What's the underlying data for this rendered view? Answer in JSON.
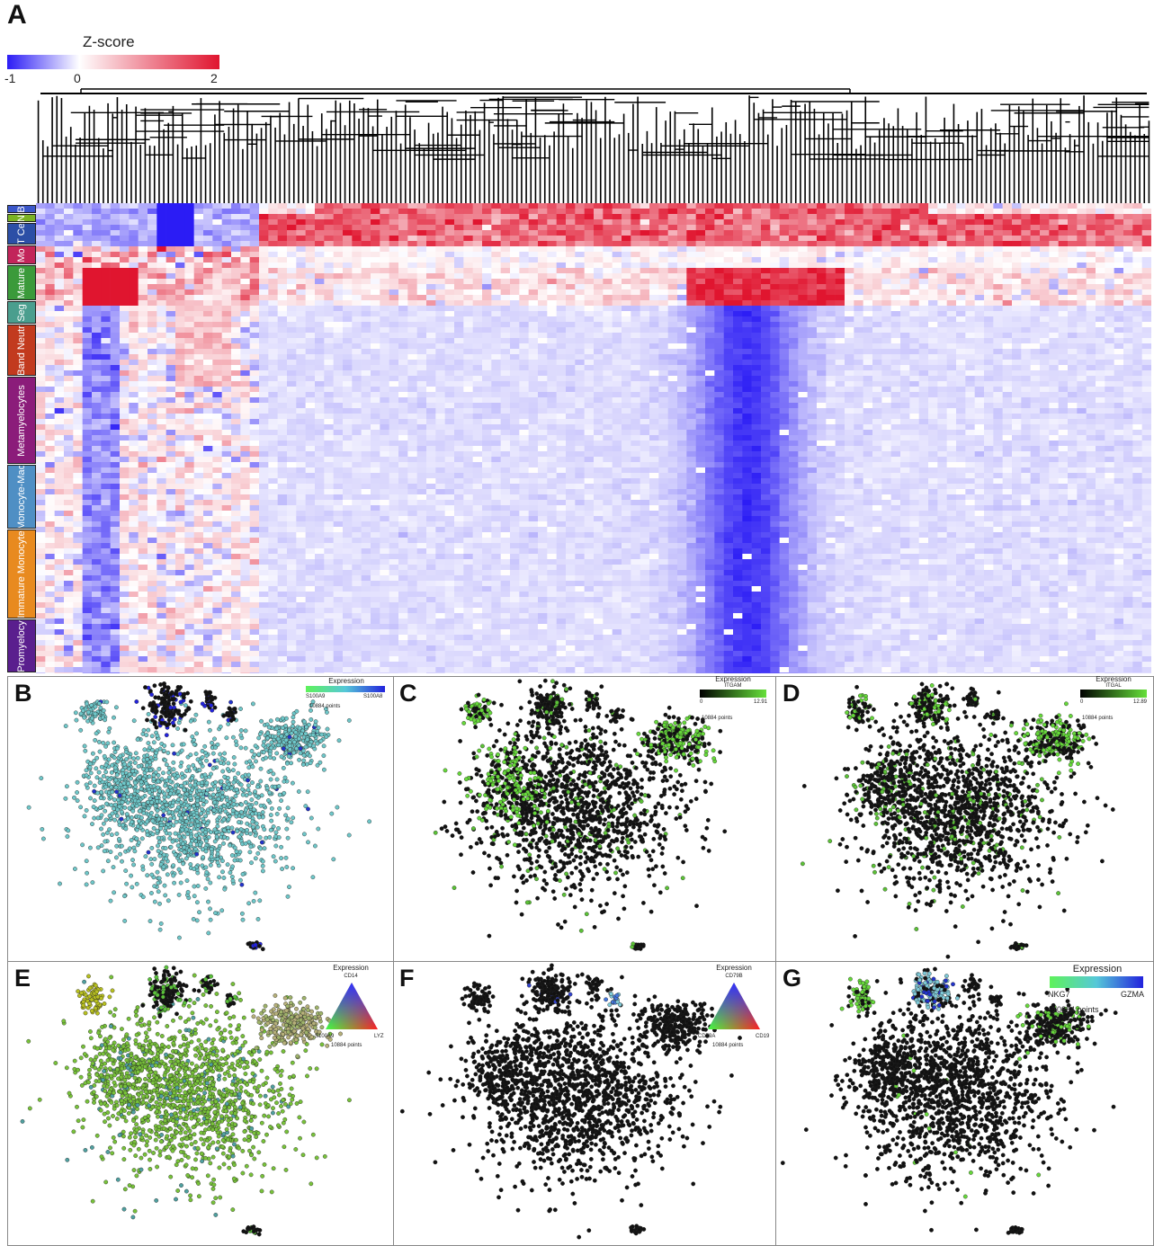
{
  "panels": {
    "a": "A",
    "b": "B",
    "c": "C",
    "d": "D",
    "e": "E",
    "f": "F",
    "g": "G"
  },
  "colorbar": {
    "title": "Z-score",
    "ticks": [
      "-1",
      "0",
      "2"
    ],
    "colors": {
      "low": "#2b1cf5",
      "mid": "#ffffff",
      "high": "#e0152f"
    }
  },
  "chart_data": [
    {
      "panel": "A",
      "type": "heatmap",
      "title": "",
      "colorbar_label": "Z-score",
      "zlim": [
        -1,
        2
      ],
      "dendrogram": "top",
      "row_groups": [
        {
          "label": "B",
          "color": "#3a56c9"
        },
        {
          "label": "N",
          "color": "#7bb324"
        },
        {
          "label": "T Ce",
          "color": "#2c4fa6"
        },
        {
          "label": "Mo",
          "color": "#c2245a"
        },
        {
          "label": "Mature",
          "color": "#3b9a3a"
        },
        {
          "label": "Seg",
          "color": "#4a9e8e"
        },
        {
          "label": "Band Neutr",
          "color": "#c23a1e"
        },
        {
          "label": "Metamyelocytes",
          "color": "#8b1c7a"
        },
        {
          "label": "Monocyte-Mac",
          "color": "#4f8fc4"
        },
        {
          "label": "Immature Monocyte",
          "color": "#e88a1f"
        },
        {
          "label": "Promyelocy",
          "color": "#5a1f8e"
        }
      ]
    },
    {
      "panel": "B",
      "type": "scatter",
      "legend_title": "Expression",
      "legend_left": "S100A9",
      "legend_right": "S100A8",
      "points_label": "10884 points",
      "colors": {
        "low": "#5ef25a",
        "mid": "#56c8d8",
        "high": "#2222dd"
      }
    },
    {
      "panel": "C",
      "type": "scatter",
      "legend_title": "Expression",
      "gene": "ITGAM",
      "range_min": "0",
      "range_max": "12.91",
      "points_label": "10884 points",
      "colors": {
        "low": "#000000",
        "high": "#66e03a"
      }
    },
    {
      "panel": "D",
      "type": "scatter",
      "legend_title": "Expression",
      "gene": "ITGAL",
      "range_min": "0",
      "range_max": "12.89",
      "points_label": "10884 points",
      "colors": {
        "low": "#000000",
        "high": "#66e03a"
      }
    },
    {
      "panel": "E",
      "type": "scatter",
      "legend_title": "Expression",
      "top_gene": "CD14",
      "left_gene": "S100A9",
      "right_gene": "LYZ",
      "points_label": "10884 points"
    },
    {
      "panel": "F",
      "type": "scatter",
      "legend_title": "Expression",
      "top_gene": "CD79B",
      "left_gene": "CD79A",
      "right_gene": "CD19",
      "points_label": "10884 points"
    },
    {
      "panel": "G",
      "type": "scatter",
      "legend_title": "Expression",
      "legend_left": "NKG7",
      "legend_right": "GZMA",
      "points_label": "10884 points",
      "colors": {
        "low": "#5ef25a",
        "mid": "#56c8d8",
        "high": "#2222dd"
      }
    }
  ]
}
